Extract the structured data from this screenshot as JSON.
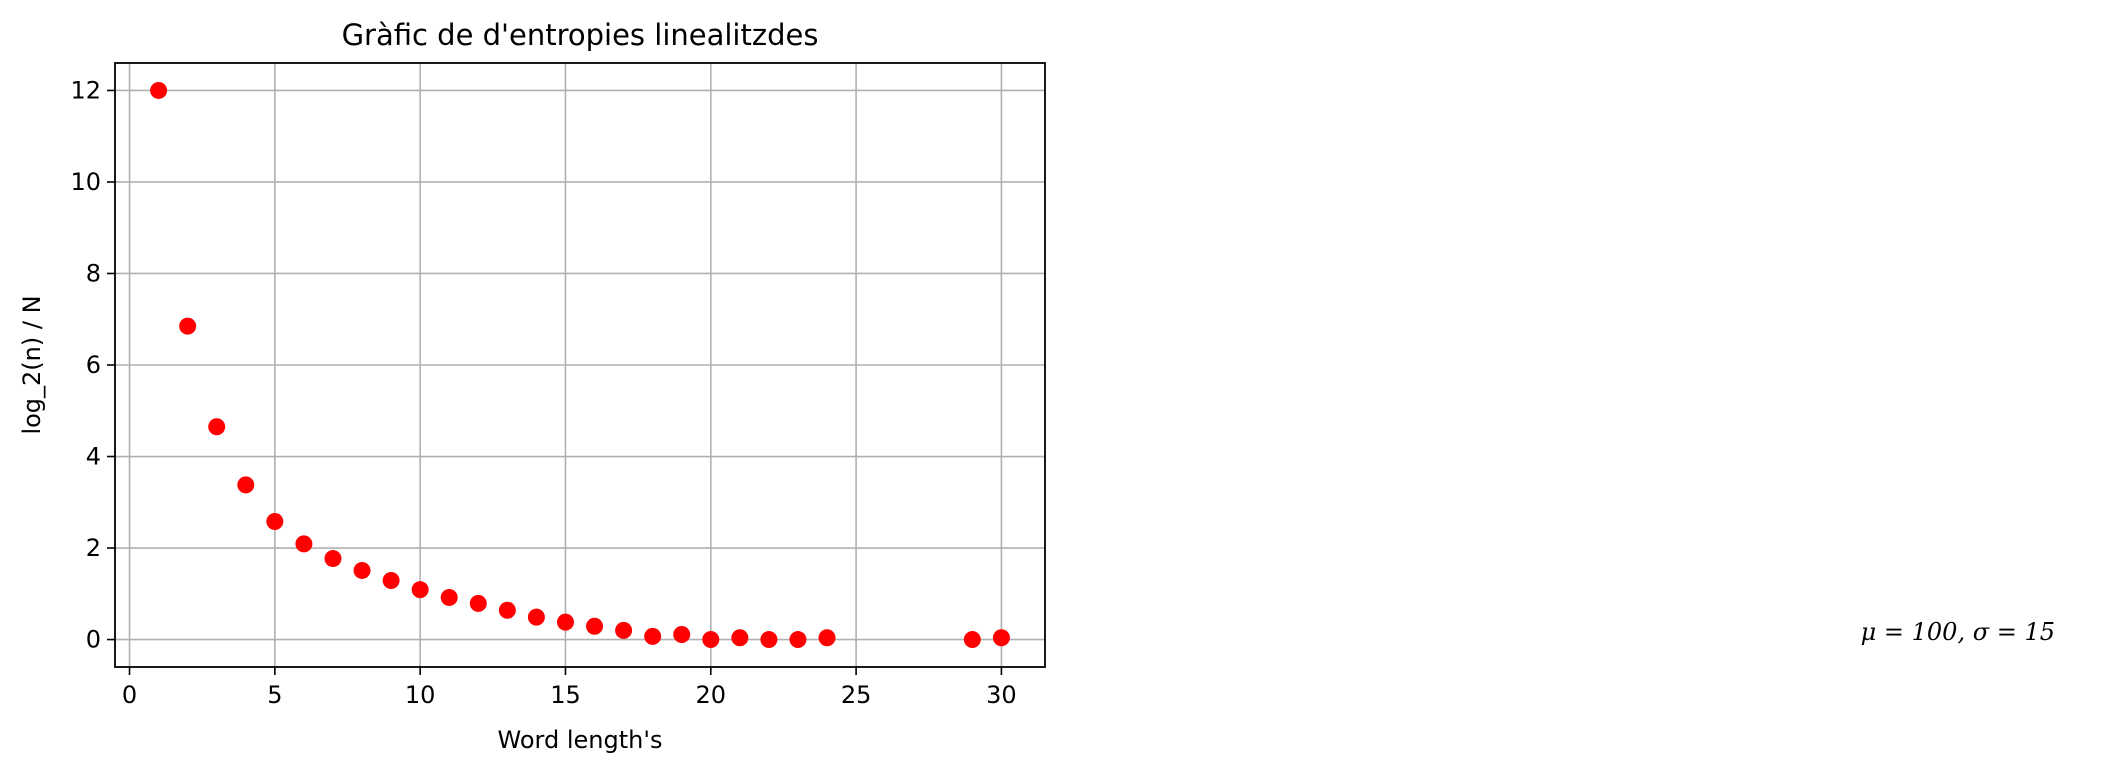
{
  "chart_data": {
    "type": "scatter",
    "title": "Gràfic de d'entropies linealitzdes",
    "xlabel": "Word length's",
    "ylabel": "log_2(n) / N",
    "xlim": [
      -0.5,
      31.5
    ],
    "ylim": [
      -0.6,
      12.6
    ],
    "xticks": [
      0,
      5,
      10,
      15,
      20,
      25,
      30
    ],
    "yticks": [
      0,
      2,
      4,
      6,
      8,
      10,
      12
    ],
    "grid": true,
    "marker_color": "#ff0000",
    "series": [
      {
        "x": [
          1,
          2,
          3,
          4,
          5,
          6,
          7,
          8,
          9,
          10,
          11,
          12,
          13,
          14,
          15,
          16,
          17,
          18,
          19,
          20,
          21,
          22,
          23,
          24,
          29,
          30
        ],
        "y": [
          12.0,
          6.85,
          4.65,
          3.38,
          2.58,
          2.09,
          1.77,
          1.51,
          1.29,
          1.09,
          0.92,
          0.79,
          0.64,
          0.49,
          0.38,
          0.29,
          0.2,
          0.07,
          0.11,
          0.0,
          0.04,
          0.0,
          0.0,
          0.04,
          0.0,
          0.04
        ]
      }
    ],
    "annotation": "μ = 100,  σ = 15"
  }
}
